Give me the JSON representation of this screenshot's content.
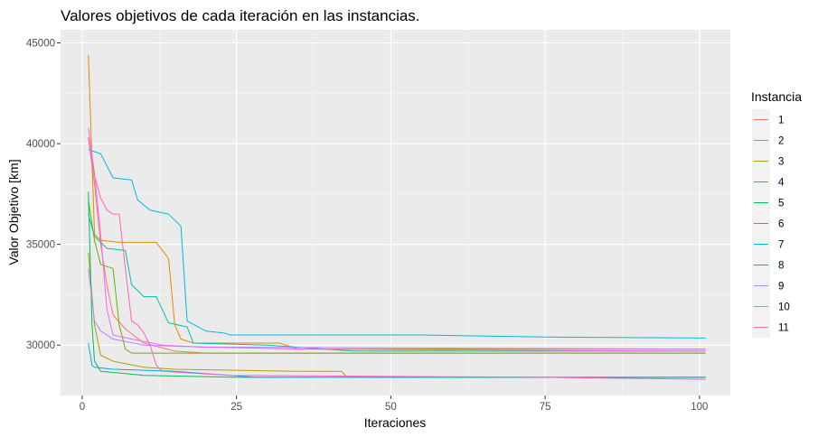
{
  "chart_data": {
    "type": "line",
    "title": "Valores objetivos de cada iteración en las instancias.",
    "xlabel": "Iteraciones",
    "ylabel": "Valor Objetivo [km]",
    "xlim": [
      -3.5,
      105
    ],
    "ylim": [
      27500,
      45650
    ],
    "xticks": [
      0,
      25,
      50,
      75,
      100
    ],
    "yticks": [
      30000,
      35000,
      40000,
      45000
    ],
    "x_tick_labels": [
      "0",
      "25",
      "50",
      "75",
      "100"
    ],
    "y_tick_labels": [
      "30000",
      "35000",
      "40000",
      "45000"
    ],
    "grid": true,
    "legend": {
      "title": "Instancia",
      "position": "right"
    },
    "series": [
      {
        "name": "1",
        "color": "#F8766D",
        "points": [
          [
            1,
            40300
          ],
          [
            2,
            38000
          ],
          [
            3,
            35000
          ],
          [
            4,
            33000
          ],
          [
            5,
            31500
          ],
          [
            7,
            30800
          ],
          [
            10,
            30100
          ],
          [
            15,
            29700
          ],
          [
            20,
            29600
          ],
          [
            101,
            29600
          ]
        ]
      },
      {
        "name": "2",
        "color": "#DB8E00",
        "points": [
          [
            1,
            44400
          ],
          [
            1.5,
            40000
          ],
          [
            2,
            35500
          ],
          [
            3,
            35200
          ],
          [
            6,
            35100
          ],
          [
            12,
            35100
          ],
          [
            14,
            34300
          ],
          [
            15,
            31000
          ],
          [
            16,
            30300
          ],
          [
            18,
            30100
          ],
          [
            32,
            30100
          ],
          [
            35,
            29800
          ],
          [
            101,
            29800
          ]
        ]
      },
      {
        "name": "3",
        "color": "#AEA200",
        "points": [
          [
            1,
            34600
          ],
          [
            2,
            31000
          ],
          [
            3,
            29500
          ],
          [
            5,
            29200
          ],
          [
            10,
            28900
          ],
          [
            15,
            28800
          ],
          [
            25,
            28750
          ],
          [
            35,
            28700
          ],
          [
            42,
            28700
          ],
          [
            43,
            28400
          ],
          [
            101,
            28400
          ]
        ]
      },
      {
        "name": "4",
        "color": "#64B200",
        "points": [
          [
            1,
            37200
          ],
          [
            2,
            35200
          ],
          [
            3,
            34000
          ],
          [
            4,
            33900
          ],
          [
            5,
            33800
          ],
          [
            6,
            31000
          ],
          [
            7,
            29800
          ],
          [
            8,
            29600
          ],
          [
            101,
            29600
          ]
        ]
      },
      {
        "name": "5",
        "color": "#00BD5C",
        "points": [
          [
            1,
            37600
          ],
          [
            1.6,
            31000
          ],
          [
            2,
            29200
          ],
          [
            3,
            28700
          ],
          [
            10,
            28500
          ],
          [
            25,
            28400
          ],
          [
            78,
            28400
          ],
          [
            101,
            28400
          ]
        ]
      },
      {
        "name": "6",
        "color": "#00C1A7",
        "points": [
          [
            1,
            36500
          ],
          [
            2,
            35400
          ],
          [
            4,
            34800
          ],
          [
            7,
            34700
          ],
          [
            8,
            33000
          ],
          [
            10,
            32400
          ],
          [
            12,
            32400
          ],
          [
            14,
            31100
          ],
          [
            17,
            30900
          ],
          [
            18,
            30100
          ],
          [
            30,
            30000
          ],
          [
            44,
            29700
          ],
          [
            101,
            29700
          ]
        ]
      },
      {
        "name": "7",
        "color": "#00BADE",
        "points": [
          [
            1,
            39700
          ],
          [
            3,
            39500
          ],
          [
            5,
            38300
          ],
          [
            8,
            38200
          ],
          [
            9,
            37200
          ],
          [
            11,
            36700
          ],
          [
            14,
            36500
          ],
          [
            16,
            35900
          ],
          [
            17,
            31200
          ],
          [
            20,
            30700
          ],
          [
            23,
            30600
          ],
          [
            24,
            30500
          ],
          [
            55,
            30500
          ],
          [
            75,
            30400
          ],
          [
            101,
            30350
          ]
        ]
      },
      {
        "name": "8",
        "color": "#00A6FF",
        "points": [
          [
            1,
            30100
          ],
          [
            1.6,
            29000
          ],
          [
            2,
            28900
          ],
          [
            5,
            28800
          ],
          [
            15,
            28700
          ],
          [
            24,
            28500
          ],
          [
            28,
            28400
          ],
          [
            101,
            28400
          ]
        ]
      },
      {
        "name": "9",
        "color": "#B385FF",
        "points": [
          [
            1,
            33800
          ],
          [
            2,
            31200
          ],
          [
            3,
            30700
          ],
          [
            5,
            30300
          ],
          [
            10,
            30000
          ],
          [
            20,
            29900
          ],
          [
            101,
            29800
          ]
        ]
      },
      {
        "name": "10",
        "color": "#EF67EB",
        "points": [
          [
            1,
            40800
          ],
          [
            2,
            38500
          ],
          [
            3,
            35500
          ],
          [
            4,
            31800
          ],
          [
            5,
            30500
          ],
          [
            8,
            30300
          ],
          [
            13,
            30000
          ],
          [
            20,
            29900
          ],
          [
            35,
            29800
          ],
          [
            101,
            29700
          ]
        ]
      },
      {
        "name": "11",
        "color": "#FF63B6",
        "points": [
          [
            1,
            40300
          ],
          [
            2,
            38400
          ],
          [
            3,
            37300
          ],
          [
            4,
            36700
          ],
          [
            5,
            36500
          ],
          [
            6,
            36500
          ],
          [
            7,
            33800
          ],
          [
            8,
            31200
          ],
          [
            9,
            31000
          ],
          [
            10,
            30600
          ],
          [
            11,
            30000
          ],
          [
            12,
            29000
          ],
          [
            13,
            28700
          ],
          [
            24,
            28500
          ],
          [
            75,
            28400
          ],
          [
            101,
            28300
          ]
        ]
      }
    ]
  }
}
